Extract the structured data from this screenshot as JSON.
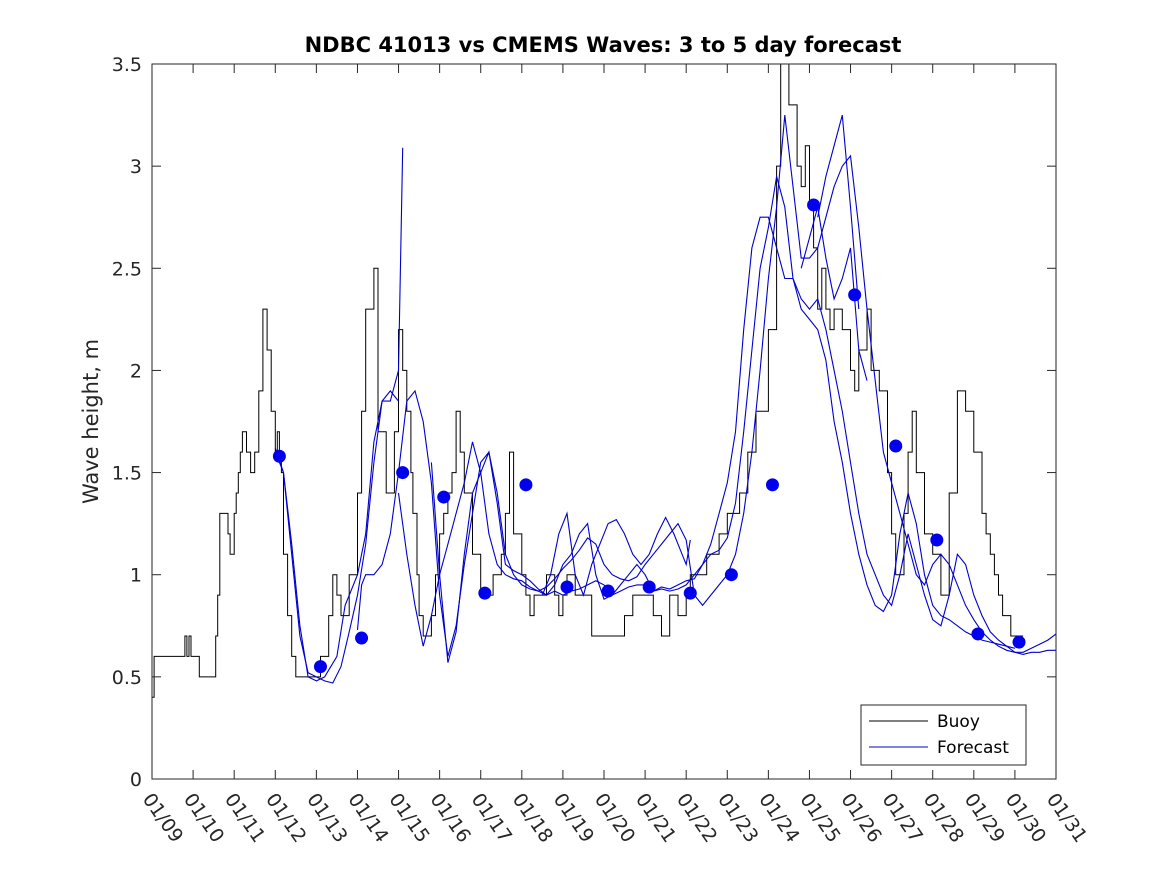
{
  "chart_data": {
    "type": "line",
    "title": "NDBC 41013 vs CMEMS Waves: 3 to 5 day forecast",
    "xlabel": "",
    "ylabel": "Wave height, m",
    "xlim": [
      0,
      22
    ],
    "ylim": [
      0,
      3.5
    ],
    "x_tick_labels": [
      "01/09",
      "01/10",
      "01/11",
      "01/12",
      "01/13",
      "01/14",
      "01/15",
      "01/16",
      "01/17",
      "01/18",
      "01/19",
      "01/20",
      "01/21",
      "01/22",
      "01/23",
      "01/24",
      "01/25",
      "01/26",
      "01/27",
      "01/28",
      "01/29",
      "01/30",
      "01/31"
    ],
    "y_ticks": [
      0,
      0.5,
      1,
      1.5,
      2,
      2.5,
      3,
      3.5
    ],
    "y_tick_labels": [
      "0",
      "0.5",
      "1",
      "1.5",
      "2",
      "2.5",
      "3",
      "3.5"
    ],
    "legend": {
      "position": "bottom-right",
      "entries": [
        "Buoy",
        "Forecast"
      ]
    },
    "series": [
      {
        "name": "Buoy",
        "color": "#000000",
        "x": [
          0,
          0.05,
          0.1,
          0.5,
          0.75,
          0.8,
          0.85,
          0.9,
          0.95,
          1.0,
          1.1,
          1.15,
          1.5,
          1.55,
          1.6,
          1.65,
          1.7,
          1.8,
          1.85,
          1.9,
          2.0,
          2.05,
          2.1,
          2.15,
          2.2,
          2.3,
          2.4,
          2.5,
          2.6,
          2.7,
          2.8,
          2.9,
          3.0,
          3.05,
          3.1,
          3.15,
          3.2,
          3.3,
          3.4,
          3.5,
          3.6,
          3.8,
          3.9,
          4.1,
          4.3,
          4.4,
          4.5,
          4.6,
          4.8,
          5.0,
          5.1,
          5.2,
          5.4,
          5.5,
          5.7,
          5.9,
          6.0,
          6.1,
          6.2,
          6.3,
          6.35,
          6.45,
          6.5,
          6.6,
          6.8,
          6.9,
          7.0,
          7.1,
          7.2,
          7.3,
          7.4,
          7.5,
          7.6,
          7.8,
          8.0,
          8.2,
          8.3,
          8.5,
          8.6,
          8.7,
          8.8,
          9.0,
          9.1,
          9.2,
          9.3,
          9.4,
          9.6,
          9.8,
          9.9,
          10.0,
          10.1,
          10.3,
          10.5,
          10.7,
          11.0,
          11.2,
          11.5,
          11.7,
          12.0,
          12.2,
          12.4,
          12.6,
          12.8,
          13.0,
          13.1,
          13.3,
          13.5,
          13.8,
          14.0,
          14.3,
          14.5,
          14.7,
          15.0,
          15.2,
          15.3,
          15.5,
          15.7,
          15.8,
          15.9,
          16.0,
          16.1,
          16.2,
          16.3,
          16.4,
          16.5,
          16.6,
          16.8,
          17.0,
          17.1,
          17.2,
          17.4,
          17.5,
          17.7,
          17.9,
          18.0,
          18.1,
          18.3,
          18.4,
          18.5,
          18.6,
          18.8,
          18.9,
          19.0,
          19.2,
          19.4,
          19.6,
          19.8,
          20.0,
          20.2,
          20.3,
          20.4,
          20.5,
          20.6,
          20.7,
          20.9,
          21.0,
          21.1,
          21.2
        ],
        "y": [
          0.4,
          0.6,
          0.6,
          0.6,
          0.6,
          0.7,
          0.6,
          0.7,
          0.6,
          0.6,
          0.6,
          0.5,
          0.5,
          0.7,
          0.9,
          1.3,
          1.3,
          1.3,
          1.2,
          1.1,
          1.3,
          1.4,
          1.5,
          1.6,
          1.7,
          1.6,
          1.5,
          1.6,
          1.9,
          2.3,
          2.1,
          1.8,
          1.6,
          1.7,
          1.6,
          1.5,
          1.1,
          0.8,
          0.6,
          0.5,
          0.5,
          0.5,
          0.5,
          0.6,
          0.8,
          1.0,
          0.9,
          0.8,
          1.0,
          1.4,
          1.8,
          2.3,
          2.5,
          1.7,
          1.4,
          1.7,
          2.2,
          2.0,
          1.8,
          1.5,
          1.3,
          1.0,
          0.8,
          0.7,
          0.8,
          1.0,
          1.2,
          1.3,
          1.4,
          1.5,
          1.8,
          1.6,
          1.4,
          1.1,
          0.9,
          0.9,
          1.0,
          1.1,
          1.3,
          1.6,
          1.2,
          1.0,
          0.9,
          0.8,
          0.9,
          0.9,
          1.0,
          0.9,
          0.8,
          0.9,
          1.0,
          0.9,
          0.9,
          0.7,
          0.7,
          0.7,
          0.8,
          0.9,
          0.9,
          0.8,
          0.7,
          0.9,
          0.8,
          0.9,
          1.0,
          1.0,
          1.1,
          1.2,
          1.3,
          1.4,
          1.6,
          1.8,
          2.2,
          3.0,
          3.5,
          3.3,
          3.0,
          2.9,
          3.1,
          2.8,
          2.6,
          2.3,
          2.5,
          2.3,
          2.2,
          2.3,
          2.2,
          2.0,
          1.9,
          2.1,
          2.3,
          2.0,
          1.9,
          1.5,
          1.2,
          1.0,
          1.3,
          1.6,
          1.8,
          1.5,
          1.2,
          1.2,
          1.1,
          0.9,
          1.4,
          1.9,
          1.8,
          1.6,
          1.3,
          1.2,
          1.1,
          1.0,
          0.9,
          0.8,
          0.7,
          0.7,
          0.7,
          0.7
        ]
      },
      {
        "name": "Forecast",
        "color": "#0000cc",
        "segments": [
          {
            "x": [
              3.0,
              3.2,
              3.4,
              3.6,
              3.8,
              4.0,
              4.2,
              4.5,
              4.7,
              5.0,
              5.2,
              5.4,
              5.6,
              5.8,
              6.0
            ],
            "y": [
              1.6,
              1.5,
              1.15,
              0.75,
              0.5,
              0.48,
              0.5,
              0.6,
              0.85,
              1.0,
              1.2,
              1.65,
              1.85,
              1.9,
              1.85
            ]
          },
          {
            "x": [
              3.0,
              3.2,
              3.4,
              3.6,
              3.8,
              4.0,
              4.2,
              4.4,
              4.6,
              4.8,
              5.0,
              5.2,
              5.4,
              5.6,
              5.8,
              6.0,
              6.1
            ],
            "y": [
              1.62,
              1.5,
              1.1,
              0.7,
              0.52,
              0.5,
              0.48,
              0.47,
              0.55,
              0.72,
              0.9,
              1.15,
              1.55,
              1.85,
              1.85,
              2.0,
              3.09
            ]
          },
          {
            "x": [
              5.0,
              5.1,
              5.2,
              5.4,
              5.6,
              5.8,
              6.0,
              6.2,
              6.4,
              6.6,
              6.8,
              7.0,
              7.2,
              7.4,
              7.6,
              7.8,
              8.0,
              8.2,
              8.4,
              8.6,
              8.8,
              9.0,
              9.2,
              9.4,
              9.6,
              9.8,
              10.0,
              10.2,
              10.4,
              10.6,
              10.8,
              11.0,
              11.2,
              11.4,
              11.6,
              11.8,
              12.0,
              12.2,
              12.4,
              12.6,
              12.8,
              13.0,
              13.2,
              13.4,
              13.6,
              13.8,
              14.0,
              14.2,
              14.4,
              14.6,
              14.8,
              15.0,
              15.2,
              15.4,
              15.6,
              15.8,
              16.0,
              16.2,
              16.4,
              16.6,
              16.8,
              17.0,
              17.2,
              17.4,
              17.6,
              17.8,
              18.0,
              18.2,
              18.4,
              18.6,
              18.8,
              19.0,
              19.2,
              19.4,
              19.6,
              19.8,
              20.0,
              20.2,
              20.4,
              20.6,
              20.8,
              21.0,
              21.2,
              21.4,
              21.6,
              21.8,
              22.0
            ],
            "y": [
              0.73,
              0.95,
              1.0,
              1.0,
              1.05,
              1.2,
              1.5,
              1.85,
              1.9,
              1.75,
              1.45,
              0.9,
              0.6,
              0.75,
              1.05,
              1.3,
              1.55,
              1.6,
              1.4,
              1.1,
              1.0,
              0.95,
              0.93,
              0.92,
              0.9,
              0.92,
              0.9,
              0.92,
              0.93,
              0.95,
              0.97,
              0.95,
              0.9,
              0.92,
              0.94,
              0.95,
              0.95,
              0.92,
              0.93,
              0.92,
              0.93,
              0.95,
              1.0,
              1.05,
              1.15,
              1.3,
              1.45,
              1.7,
              2.2,
              2.6,
              2.75,
              2.75,
              2.6,
              2.45,
              2.45,
              2.35,
              2.3,
              2.35,
              2.2,
              2.0,
              1.8,
              1.55,
              1.3,
              1.1,
              1.0,
              0.9,
              0.85,
              1.0,
              1.2,
              1.05,
              0.9,
              0.78,
              0.75,
              0.9,
              1.1,
              1.05,
              0.9,
              0.8,
              0.72,
              0.68,
              0.65,
              0.62,
              0.61,
              0.62,
              0.62,
              0.63,
              0.63
            ]
          },
          {
            "x": [
              6.8,
              7.0,
              7.2,
              7.4,
              7.6,
              7.8,
              8.0,
              8.2,
              8.4,
              8.6,
              8.8,
              9.0,
              9.2,
              9.4,
              9.6,
              9.8,
              10.0,
              10.2,
              10.4,
              10.6,
              10.8,
              11.0,
              11.2,
              11.4,
              11.6,
              11.8,
              12.0,
              12.2,
              12.4,
              12.6,
              12.8,
              13.0,
              13.2,
              13.4,
              13.6,
              13.8,
              14.0,
              14.2,
              14.4,
              14.6,
              14.8,
              15.0,
              15.2,
              15.4,
              15.6,
              15.8,
              16.0,
              16.2,
              16.4,
              16.6,
              16.8,
              17.0,
              17.2,
              17.4,
              17.6,
              17.8,
              18.0,
              18.2,
              18.4,
              18.6,
              18.8,
              19.0,
              19.2,
              19.4,
              19.6,
              19.8,
              20.0,
              20.2,
              20.4,
              20.6,
              20.8,
              21.0
            ],
            "y": [
              1.55,
              1.0,
              0.57,
              0.72,
              1.1,
              1.4,
              1.5,
              1.6,
              1.35,
              1.05,
              1.02,
              1.0,
              0.97,
              0.93,
              0.9,
              0.95,
              1.05,
              1.1,
              1.2,
              1.25,
              1.0,
              0.88,
              0.9,
              0.95,
              1.0,
              1.05,
              1.0,
              0.92,
              0.94,
              0.93,
              0.95,
              0.97,
              0.98,
              1.05,
              1.1,
              1.12,
              1.18,
              1.35,
              1.7,
              2.1,
              2.5,
              2.7,
              2.95,
              2.8,
              2.45,
              2.3,
              2.25,
              2.2,
              2.05,
              1.75,
              1.55,
              1.3,
              1.1,
              0.95,
              0.85,
              0.82,
              0.9,
              1.2,
              1.4,
              1.25,
              1.0,
              0.85,
              0.8,
              0.78,
              0.75,
              0.72,
              0.7,
              0.68,
              0.67,
              0.66,
              0.65,
              0.64
            ]
          },
          {
            "x": [
              6.0,
              6.2,
              6.4,
              6.6,
              6.8,
              7.0,
              7.2,
              7.4,
              7.6,
              7.8,
              8.0,
              8.2,
              8.4,
              8.6,
              8.8,
              9.0,
              9.2,
              9.4,
              9.6,
              9.8,
              10.0,
              10.2,
              10.4,
              10.6,
              10.8,
              11.0,
              11.2,
              11.4,
              11.6,
              11.8,
              12.0,
              12.2,
              12.4,
              12.6,
              12.8,
              13.0,
              13.2,
              13.4,
              13.6,
              13.8,
              14.0,
              14.2,
              14.4,
              14.6,
              14.8,
              15.0,
              15.2,
              15.4,
              15.6,
              15.8,
              16.0,
              16.2,
              16.4,
              16.6,
              16.8,
              17.0,
              17.2,
              17.4,
              17.6,
              17.8,
              18.0,
              18.2,
              18.4,
              18.6,
              18.8,
              19.0,
              19.2,
              19.4,
              19.6,
              19.8,
              20.0,
              20.2,
              20.4,
              20.6,
              20.8,
              21.0,
              21.2,
              21.4,
              21.6,
              21.8,
              22.0
            ],
            "y": [
              1.4,
              1.1,
              0.85,
              0.65,
              0.8,
              1.0,
              1.15,
              1.3,
              1.45,
              1.65,
              1.5,
              1.2,
              1.05,
              1.0,
              0.98,
              0.97,
              0.94,
              0.92,
              0.94,
              0.98,
              1.03,
              1.07,
              1.12,
              1.18,
              1.15,
              1.05,
              1.0,
              0.98,
              0.97,
              0.99,
              1.05,
              1.1,
              1.15,
              1.2,
              1.25,
              1.17,
              0.9,
              0.85,
              0.9,
              0.95,
              1.0,
              1.1,
              1.3,
              1.6,
              2.0,
              2.45,
              2.8,
              3.25,
              2.9,
              2.55,
              2.55,
              2.6,
              2.75,
              2.9,
              3.0,
              3.05,
              2.7,
              2.3,
              1.95,
              1.6,
              1.45,
              1.3,
              1.15,
              1.0,
              0.95,
              1.05,
              1.1,
              1.05,
              0.95,
              0.85,
              0.78,
              0.72,
              0.68,
              0.65,
              0.63,
              0.62,
              0.62,
              0.64,
              0.66,
              0.68,
              0.71
            ]
          },
          {
            "x": [
              9.5,
              9.7,
              9.9,
              10.1,
              10.3,
              10.5,
              10.7,
              10.9,
              11.1,
              11.3,
              11.5,
              11.7,
              11.9,
              12.1,
              12.3,
              12.5,
              12.7,
              12.9,
              13.0,
              13.1
            ],
            "y": [
              0.9,
              1.0,
              1.2,
              1.3,
              1.0,
              0.9,
              1.05,
              1.15,
              1.25,
              1.27,
              1.2,
              1.1,
              1.05,
              1.1,
              1.2,
              1.28,
              1.2,
              1.1,
              1.05,
              1.17
            ]
          },
          {
            "x": [
              15.8,
              16.0,
              16.2,
              16.4,
              16.6,
              16.8,
              17.0,
              17.2,
              17.4
            ],
            "y": [
              2.5,
              2.65,
              2.8,
              2.55,
              2.35,
              2.45,
              2.6,
              2.1,
              1.95
            ]
          },
          {
            "x": [
              16.2,
              16.4,
              16.6,
              16.8,
              17.0,
              17.2
            ],
            "y": [
              2.75,
              2.95,
              3.1,
              3.25,
              2.8,
              2.3
            ]
          }
        ]
      }
    ],
    "markers": {
      "name": "Forecast points",
      "color": "#0000ee",
      "x": [
        3.1,
        4.1,
        5.1,
        6.1,
        7.1,
        8.1,
        9.1,
        10.1,
        11.1,
        12.1,
        13.1,
        14.1,
        15.1,
        16.1,
        17.1,
        18.1,
        19.1,
        20.1,
        21.1
      ],
      "y": [
        1.58,
        0.55,
        0.69,
        1.5,
        1.38,
        0.91,
        1.44,
        0.94,
        0.92,
        0.94,
        0.91,
        1.0,
        1.44,
        2.81,
        2.37,
        1.63,
        1.17,
        0.71,
        0.67
      ]
    }
  }
}
